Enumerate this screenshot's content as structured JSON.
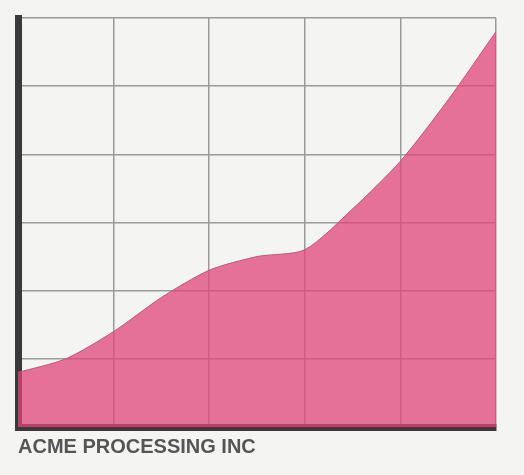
{
  "chart_data": {
    "type": "area",
    "title": "ACME PROCESSING INC",
    "x": [
      0,
      0.5,
      1,
      1.5,
      2,
      2.5,
      3,
      3.5,
      4,
      4.5,
      5
    ],
    "values": [
      0.8,
      1.0,
      1.4,
      1.9,
      2.3,
      2.5,
      2.6,
      3.2,
      3.9,
      4.8,
      5.8
    ],
    "color": "#e0457b",
    "xlim": [
      0,
      5
    ],
    "xticks": [
      0,
      1,
      2,
      3,
      4,
      5
    ],
    "ylim": [
      0,
      6
    ],
    "yticks": [
      0,
      1,
      2,
      3,
      4,
      5,
      6
    ],
    "grid": true,
    "tick_labels": false
  }
}
